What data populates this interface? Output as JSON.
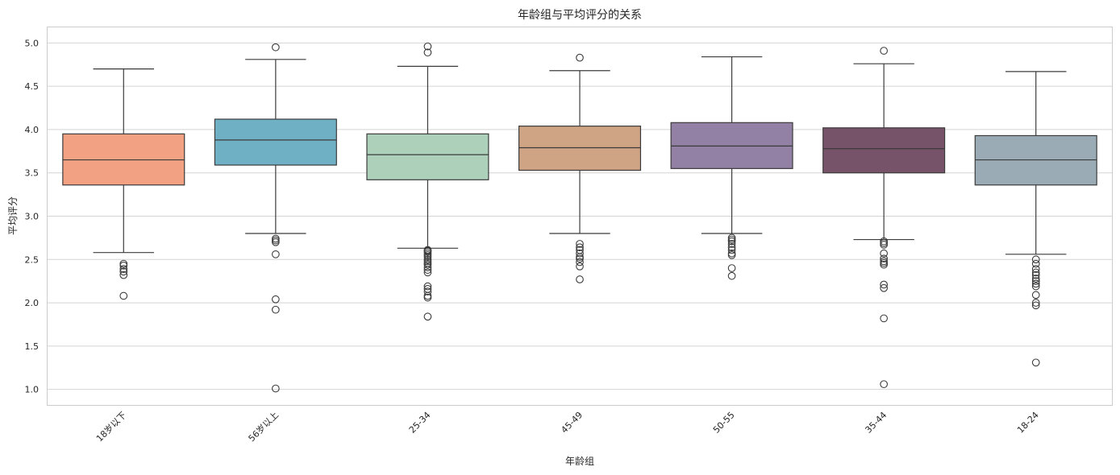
{
  "chart_data": {
    "type": "box",
    "title": "年龄组与平均评分的关系",
    "xlabel": "年龄组",
    "ylabel": "平均评分",
    "ylim": [
      0.82,
      5.18
    ],
    "yticks": [
      "1.0",
      "1.5",
      "2.0",
      "2.5",
      "3.0",
      "3.5",
      "4.0",
      "4.5",
      "5.0"
    ],
    "grid": true,
    "legend": "none",
    "categories": [
      "18岁以下",
      "56岁以上",
      "25-34",
      "45-49",
      "50-55",
      "35-44",
      "18-24"
    ],
    "colors": [
      "#f3a183",
      "#70b0c5",
      "#acd0b9",
      "#cfa484",
      "#9281a5",
      "#775369",
      "#9aabb5"
    ],
    "boxes": [
      {
        "whisker_low": 2.58,
        "q1": 3.36,
        "median": 3.65,
        "q3": 3.95,
        "whisker_high": 4.7,
        "outliers": [
          2.45,
          2.43,
          2.39,
          2.36,
          2.32,
          2.08
        ]
      },
      {
        "whisker_low": 2.8,
        "q1": 3.59,
        "median": 3.88,
        "q3": 4.12,
        "whisker_high": 4.81,
        "outliers": [
          4.95,
          2.74,
          2.72,
          2.7,
          2.56,
          2.04,
          1.92,
          1.01
        ]
      },
      {
        "whisker_low": 2.63,
        "q1": 3.42,
        "median": 3.71,
        "q3": 3.95,
        "whisker_high": 4.73,
        "outliers": [
          4.96,
          4.89,
          2.61,
          2.6,
          2.59,
          2.57,
          2.55,
          2.53,
          2.5,
          2.48,
          2.46,
          2.44,
          2.41,
          2.38,
          2.35,
          2.19,
          2.16,
          2.13,
          2.08,
          2.06,
          1.84
        ]
      },
      {
        "whisker_low": 2.8,
        "q1": 3.53,
        "median": 3.79,
        "q3": 4.04,
        "whisker_high": 4.68,
        "outliers": [
          4.83,
          2.68,
          2.64,
          2.61,
          2.57,
          2.53,
          2.51,
          2.47,
          2.42,
          2.27
        ]
      },
      {
        "whisker_low": 2.8,
        "q1": 3.55,
        "median": 3.81,
        "q3": 4.08,
        "whisker_high": 4.84,
        "outliers": [
          2.75,
          2.73,
          2.71,
          2.68,
          2.64,
          2.61,
          2.57,
          2.55,
          2.4,
          2.31
        ]
      },
      {
        "whisker_low": 2.73,
        "q1": 3.5,
        "median": 3.78,
        "q3": 4.02,
        "whisker_high": 4.76,
        "outliers": [
          4.91,
          2.71,
          2.69,
          2.67,
          2.57,
          2.51,
          2.48,
          2.46,
          2.44,
          2.21,
          2.17,
          1.82,
          1.06
        ]
      },
      {
        "whisker_low": 2.56,
        "q1": 3.36,
        "median": 3.65,
        "q3": 3.93,
        "whisker_high": 4.67,
        "outliers": [
          2.5,
          2.45,
          2.39,
          2.35,
          2.32,
          2.28,
          2.25,
          2.22,
          2.19,
          2.09,
          2.0,
          1.97,
          1.31
        ]
      }
    ]
  }
}
